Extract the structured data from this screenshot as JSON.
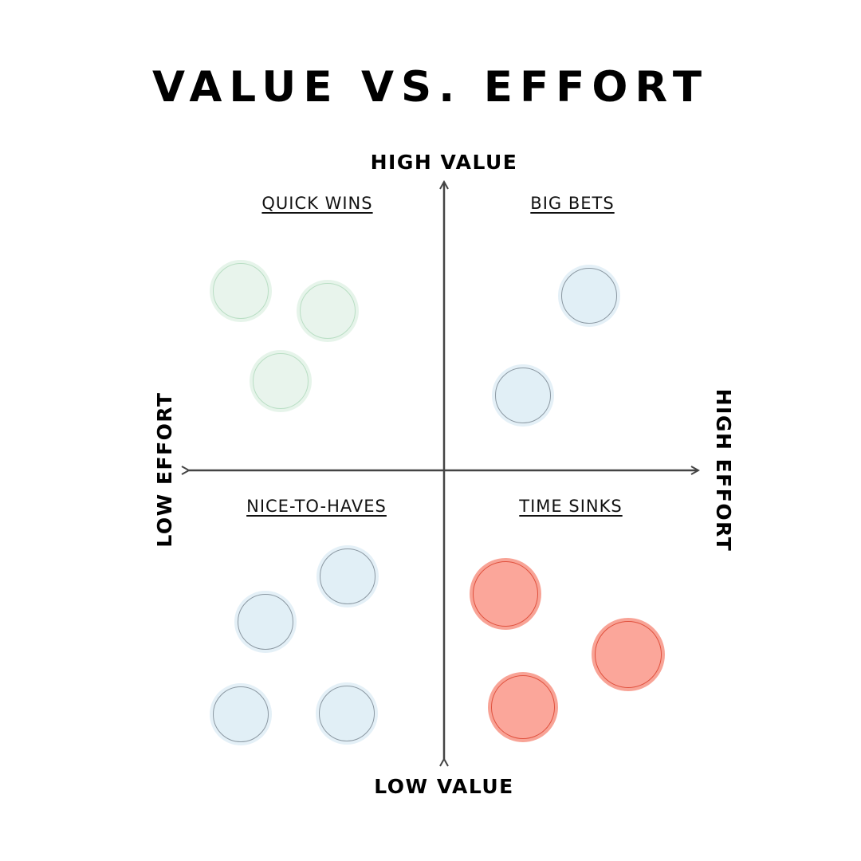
{
  "title": "VALUE VS. EFFORT",
  "axes": {
    "top": "HIGH VALUE",
    "bottom": "LOW VALUE",
    "left": "LOW EFFORT",
    "right": "HIGH EFFORT"
  },
  "quadrants": {
    "top_left": "QUICK WINS",
    "top_right": "BIG BETS",
    "bottom_left": "NICE-TO-HAVES",
    "bottom_right": "TIME SINKS"
  },
  "colors": {
    "quick_wins": "#e8f4ec",
    "big_bets": "#e1eff6",
    "nice_to_haves": "#e1eff6",
    "time_sinks": "#fba69a",
    "axis": "#444444"
  }
}
